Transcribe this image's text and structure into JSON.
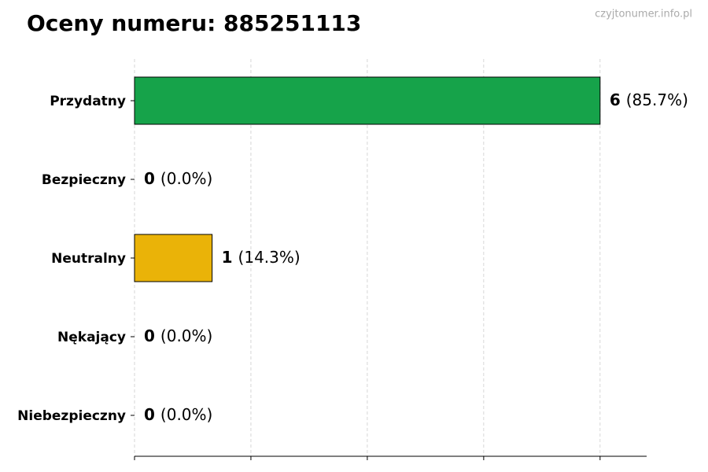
{
  "chart_data": {
    "type": "barh",
    "title": "Oceny numeru: 885251113",
    "watermark": "czyjtonumer.info.pl",
    "categories": [
      "Przydatny",
      "Bezpieczny",
      "Neutralny",
      "Nękający",
      "Niebezpieczny"
    ],
    "values": [
      6,
      0,
      1,
      0,
      0
    ],
    "percent_labels": [
      "(85.7%)",
      "(0.0%)",
      "(14.3%)",
      "(0.0%)",
      "(0.0%)"
    ],
    "colors": [
      "#16a34a",
      "#3b82f6",
      "#eab308",
      "#f97316",
      "#dc2626"
    ],
    "xlim": [
      0,
      6.6
    ],
    "xticks": [
      0,
      1.5,
      3,
      4.5,
      6
    ],
    "grid": true
  }
}
